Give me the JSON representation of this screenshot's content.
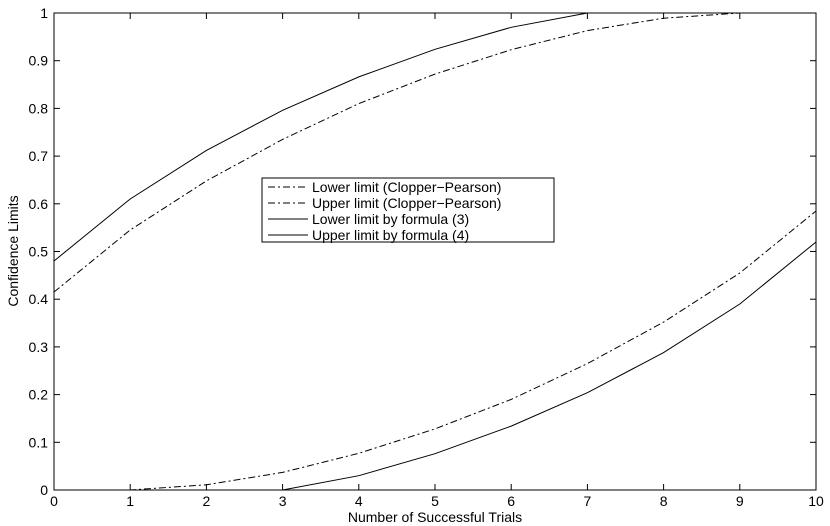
{
  "chart_data": {
    "type": "line",
    "title": "",
    "xlabel": "Number of Successful Trials",
    "ylabel": "Confidence Limits",
    "xlim": [
      0,
      10
    ],
    "ylim": [
      0,
      1
    ],
    "xticks": [
      "0",
      "1",
      "2",
      "3",
      "4",
      "5",
      "6",
      "7",
      "8",
      "9",
      "10"
    ],
    "yticks": [
      "0",
      "0.1",
      "0.2",
      "0.3",
      "0.4",
      "0.5",
      "0.6",
      "0.7",
      "0.8",
      "0.9",
      "1"
    ],
    "grid": false,
    "legend_position": "center",
    "x": [
      0,
      1,
      2,
      3,
      4,
      5,
      6,
      7,
      8,
      9,
      10
    ],
    "series": [
      {
        "name": "Lower limit (Clopper−Pearson)",
        "style": "dashdot",
        "color": "#000000",
        "values": [
          0,
          0.0,
          0.011,
          0.037,
          0.077,
          0.128,
          0.19,
          0.265,
          0.352,
          0.455,
          0.585
        ]
      },
      {
        "name": "Upper limit (Clopper−Pearson)",
        "style": "dashdot",
        "color": "#000000",
        "values": [
          0.415,
          0.545,
          0.648,
          0.735,
          0.81,
          0.872,
          0.923,
          0.963,
          0.989,
          1.0,
          1.0
        ]
      },
      {
        "name": "Lower limit by formula (3)",
        "style": "solid",
        "color": "#000000",
        "values": [
          0,
          0,
          0,
          0.0,
          0.03,
          0.076,
          0.134,
          0.204,
          0.288,
          0.39,
          0.52
        ]
      },
      {
        "name": "Upper limit by formula (4)",
        "style": "solid",
        "color": "#000000",
        "values": [
          0.48,
          0.61,
          0.712,
          0.796,
          0.866,
          0.924,
          0.97,
          1.0,
          1.0,
          1.0,
          1.0
        ]
      }
    ]
  }
}
